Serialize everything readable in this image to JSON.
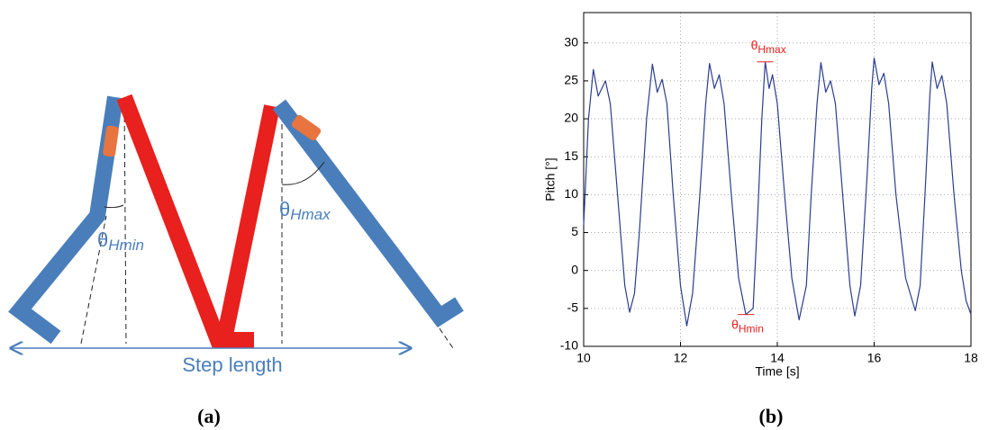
{
  "figure": {
    "panel_a": {
      "angle_min": {
        "symbol": "θ",
        "subscript": "Hmin"
      },
      "angle_max": {
        "symbol": "θ",
        "subscript": "Hmax"
      },
      "step_label": "Step length"
    },
    "panel_labels": [
      "(a)",
      "(b)"
    ]
  },
  "chart_data": {
    "type": "line",
    "x_label": "Time [s]",
    "y_label": "Pitch [°]",
    "xlim": [
      10,
      18
    ],
    "xticks": [
      10,
      12,
      14,
      16,
      18
    ],
    "ylim": [
      -10,
      34
    ],
    "yticks": [
      -10,
      -5,
      0,
      5,
      10,
      15,
      20,
      25,
      30
    ],
    "grid": true,
    "annotations": [
      {
        "symbol": "θ",
        "subscript": "Hmax",
        "x": 13.75,
        "y": 27.5
      },
      {
        "symbol": "θ",
        "subscript": "Hmin",
        "x": 13.35,
        "y": -5.8
      }
    ],
    "series": [
      {
        "color": "#2b3d8f",
        "x": [
          10.0,
          10.1,
          10.2,
          10.3,
          10.45,
          10.55,
          10.7,
          10.85,
          10.95,
          11.05,
          11.15,
          11.3,
          11.42,
          11.52,
          11.62,
          11.72,
          11.85,
          12.0,
          12.13,
          12.25,
          12.4,
          12.52,
          12.6,
          12.7,
          12.8,
          12.9,
          13.05,
          13.2,
          13.35,
          13.5,
          13.6,
          13.68,
          13.75,
          13.83,
          13.9,
          14.0,
          14.15,
          14.3,
          14.45,
          14.6,
          14.7,
          14.82,
          14.9,
          15.0,
          15.1,
          15.2,
          15.35,
          15.5,
          15.6,
          15.72,
          15.85,
          15.95,
          16.0,
          16.1,
          16.2,
          16.3,
          16.45,
          16.65,
          16.85,
          16.95,
          17.05,
          17.15,
          17.2,
          17.3,
          17.4,
          17.5,
          17.65,
          17.8,
          17.9,
          18.0
        ],
        "values": [
          6,
          20,
          26.5,
          23,
          25,
          22,
          10,
          -2,
          -5.5,
          -3,
          5,
          20,
          27.2,
          23.5,
          25.2,
          22,
          10,
          -2,
          -7.3,
          -3,
          10,
          22,
          27.3,
          24,
          25.8,
          22,
          10,
          -1,
          -5.8,
          -5,
          8,
          20,
          27.5,
          24,
          25.8,
          22,
          10,
          -1,
          -6.5,
          -2,
          10,
          22,
          27.4,
          23.5,
          25,
          22,
          10,
          -2,
          -6,
          -2,
          12,
          24,
          28,
          24.5,
          26,
          22,
          10,
          -1,
          -5.3,
          -2,
          10,
          23,
          27.5,
          24,
          25.7,
          22,
          10,
          0,
          -4,
          -5.8
        ]
      }
    ]
  }
}
